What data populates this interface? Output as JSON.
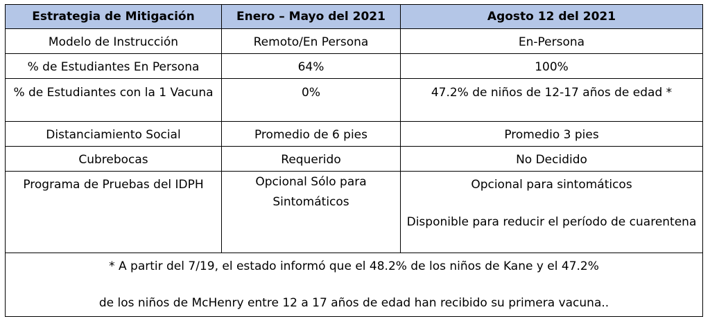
{
  "table": {
    "headers": [
      "Estrategia de Mitigación",
      "Enero – Mayo del 2021",
      "Agosto 12 del 2021"
    ],
    "rows": [
      [
        "Modelo de Instrucción",
        "Remoto/En Persona",
        "En-Persona"
      ],
      [
        "% de Estudiantes En Persona",
        "64%",
        "100%"
      ],
      [
        "% de Estudiantes con la 1 Vacuna",
        "0%",
        "47.2% de niños de 12-17 años de edad *"
      ],
      [
        "Distanciamiento Social",
        "Promedio de 6 pies",
        "Promedio 3 pies"
      ],
      [
        "Cubrebocas",
        "Requerido",
        "No Decidido"
      ],
      [
        "Programa de Pruebas del IDPH",
        "Opcional Sólo para Sintomáticos",
        [
          "Opcional para sintomáticos",
          "Disponible para reducir el período de cuarentena"
        ]
      ]
    ],
    "footnote": [
      "* A partir del 7/19, el estado informó que el 48.2% de los niños de Kane y el 47.2%",
      "de los niños de McHenry entre 12 a 17 años de edad han recibido su primera vacuna.."
    ]
  },
  "colors": {
    "header_bg": "#b4c6e7",
    "border": "#000000"
  }
}
